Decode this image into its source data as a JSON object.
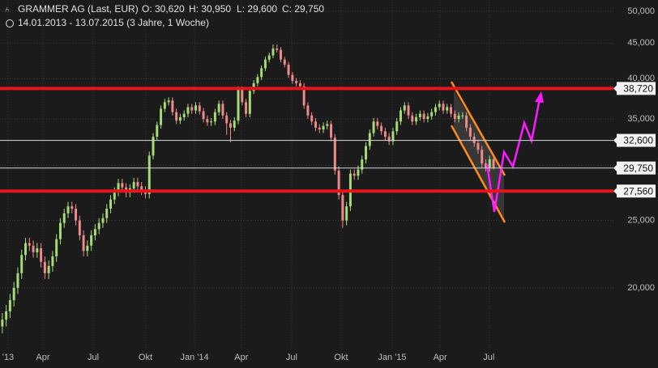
{
  "header": {
    "title": "GRAMMER AG (Last, EUR)",
    "open": "O: 30,620",
    "high": "H: 30,950",
    "low": "L: 29,600",
    "close": "C: 29,750",
    "range": "14.01.2013 - 13.07.2015 (3 Jahre, 1 Woche)"
  },
  "chart_data": {
    "type": "candlestick",
    "log_scale": true,
    "grid": true,
    "up_color": "#a6dc78",
    "down_color": "#ee8a8a",
    "xlim": [
      -0.6,
      158
    ],
    "ylim": [
      16.4,
      51.9
    ],
    "xticks": [
      {
        "value": 1.5,
        "label": "'13"
      },
      {
        "value": 10.5,
        "label": "Apr"
      },
      {
        "value": 23.5,
        "label": "Jul"
      },
      {
        "value": 37,
        "label": "Okt"
      },
      {
        "value": 49.7,
        "label": "Jan '14"
      },
      {
        "value": 61.8,
        "label": "Apr"
      },
      {
        "value": 74.8,
        "label": "Jul"
      },
      {
        "value": 87.6,
        "label": "Okt"
      },
      {
        "value": 100.8,
        "label": "Jan '15"
      },
      {
        "value": 113.2,
        "label": "Apr"
      },
      {
        "value": 125.8,
        "label": "Jul"
      }
    ],
    "yticks": [
      {
        "value": 20,
        "label": "20,000"
      },
      {
        "value": 25,
        "label": "25,000"
      },
      {
        "value": 30,
        "label": "30,000"
      },
      {
        "value": 35,
        "label": "35,000"
      },
      {
        "value": 40,
        "label": "40,000"
      },
      {
        "value": 45,
        "label": "45,000"
      },
      {
        "value": 50,
        "label": "50,000"
      }
    ],
    "levels": [
      {
        "value": 38.72,
        "label": "38,720",
        "color": "#e8141b",
        "width": 4
      },
      {
        "value": 32.6,
        "label": "32,600",
        "color": "#d8d8d8",
        "width": 1
      },
      {
        "value": 29.75,
        "label": "29,750",
        "color": "#d8d8d8",
        "width": 1
      },
      {
        "value": 27.56,
        "label": "27,560",
        "color": "#e8141b",
        "width": 4
      }
    ],
    "open": [
      17.6,
      18.0,
      18.5,
      19.2,
      20.0,
      21.0,
      22.3,
      23.2,
      23.0,
      22.5,
      22.8,
      21.8,
      21.0,
      21.5,
      22.2,
      23.5,
      24.8,
      25.6,
      26.2,
      26.0,
      25.0,
      23.8,
      22.6,
      23.0,
      23.8,
      24.3,
      24.8,
      25.2,
      26.0,
      26.8,
      27.5,
      28.3,
      27.9,
      27.4,
      27.8,
      28.4,
      28.0,
      27.6,
      27.3,
      31.0,
      33.0,
      34.3,
      36.2,
      37.0,
      37.2,
      35.8,
      34.8,
      35.2,
      35.6,
      36.4,
      36.0,
      36.6,
      35.9,
      35.0,
      34.6,
      34.7,
      35.8,
      36.8,
      35.4,
      34.5,
      34.0,
      34.8,
      38.6,
      37.0,
      35.6,
      38.4,
      39.4,
      40.2,
      41.4,
      42.6,
      43.2,
      44.2,
      44.0,
      42.6,
      41.9,
      40.5,
      39.7,
      39.4,
      39.0,
      36.6,
      35.4,
      34.7,
      34.0,
      33.8,
      34.2,
      34.4,
      32.9,
      29.5,
      27.2,
      25.0,
      26.2,
      29.2,
      29.0,
      29.6,
      30.6,
      32.0,
      33.4,
      34.7,
      34.2,
      33.6,
      33.0,
      32.5,
      33.6,
      34.7,
      36.0,
      36.6,
      35.4,
      34.7,
      35.2,
      35.6,
      35.0,
      35.3,
      35.8,
      36.4,
      36.8,
      36.0,
      36.4,
      35.6,
      35.0,
      35.4,
      35.4,
      34.0,
      33.0,
      32.3,
      31.6,
      30.2,
      29.8,
      30.62
    ],
    "high": [
      18.4,
      18.9,
      19.6,
      20.4,
      21.4,
      22.7,
      23.6,
      23.6,
      23.4,
      23.2,
      23.2,
      22.2,
      21.9,
      22.6,
      23.9,
      25.2,
      26.0,
      26.6,
      26.6,
      26.4,
      25.4,
      24.2,
      23.4,
      24.2,
      24.7,
      25.2,
      25.6,
      26.4,
      27.2,
      27.9,
      28.7,
      28.7,
      28.3,
      28.2,
      28.8,
      28.8,
      28.4,
      28.0,
      31.4,
      33.4,
      34.7,
      36.6,
      37.4,
      37.6,
      37.6,
      36.2,
      35.6,
      36.0,
      36.8,
      36.8,
      37.0,
      37.0,
      36.3,
      35.4,
      35.1,
      36.2,
      37.2,
      37.2,
      35.8,
      34.9,
      35.2,
      39.0,
      39.0,
      37.4,
      38.8,
      39.8,
      40.6,
      41.8,
      43.0,
      43.6,
      44.8,
      44.8,
      44.4,
      43.0,
      42.3,
      40.9,
      40.1,
      39.8,
      39.4,
      37.0,
      35.8,
      35.1,
      34.4,
      34.6,
      34.8,
      34.8,
      33.3,
      29.9,
      27.6,
      26.6,
      29.6,
      29.6,
      30.0,
      31.0,
      32.4,
      33.8,
      35.1,
      35.1,
      34.6,
      34.0,
      33.4,
      34.0,
      35.1,
      36.4,
      37.0,
      37.0,
      35.8,
      35.6,
      36.0,
      36.0,
      35.7,
      36.2,
      36.8,
      37.2,
      37.2,
      36.8,
      36.8,
      36.0,
      35.8,
      35.8,
      35.8,
      34.4,
      33.4,
      32.7,
      32.0,
      30.6,
      31.0,
      30.95
    ],
    "low": [
      17.2,
      17.6,
      18.1,
      18.8,
      19.6,
      20.6,
      21.9,
      22.6,
      22.1,
      22.1,
      21.4,
      20.6,
      20.6,
      21.1,
      21.8,
      23.1,
      24.4,
      25.2,
      25.6,
      24.6,
      23.4,
      22.2,
      22.2,
      22.6,
      23.4,
      23.9,
      24.4,
      24.8,
      25.6,
      26.4,
      27.1,
      27.5,
      27.0,
      27.0,
      27.4,
      27.6,
      27.2,
      26.9,
      26.9,
      30.6,
      32.6,
      33.9,
      35.8,
      36.6,
      35.4,
      34.4,
      34.4,
      34.8,
      35.2,
      35.6,
      35.6,
      35.5,
      34.6,
      34.2,
      34.2,
      34.3,
      35.4,
      35.0,
      33.2,
      32.4,
      33.6,
      34.4,
      36.6,
      35.2,
      35.2,
      38.0,
      39.0,
      39.8,
      41.0,
      42.2,
      42.8,
      43.6,
      42.2,
      41.5,
      40.1,
      39.3,
      39.0,
      38.6,
      36.2,
      35.0,
      34.3,
      33.6,
      33.4,
      33.4,
      33.8,
      32.5,
      29.1,
      26.8,
      24.4,
      24.6,
      25.8,
      28.6,
      28.6,
      29.2,
      30.2,
      31.6,
      33.0,
      33.8,
      33.2,
      32.6,
      32.1,
      32.1,
      33.2,
      34.3,
      35.6,
      35.0,
      34.3,
      34.3,
      34.8,
      34.6,
      34.6,
      34.9,
      35.4,
      36.0,
      35.6,
      35.6,
      35.2,
      34.6,
      34.6,
      35.0,
      33.6,
      32.6,
      31.9,
      31.2,
      29.8,
      29.4,
      29.4,
      29.6
    ],
    "close": [
      18.0,
      18.5,
      19.2,
      20.0,
      21.0,
      22.3,
      23.2,
      23.0,
      22.5,
      22.8,
      21.8,
      21.0,
      21.5,
      22.2,
      23.5,
      24.8,
      25.6,
      26.2,
      26.0,
      25.0,
      23.8,
      22.6,
      23.0,
      23.8,
      24.3,
      24.8,
      25.2,
      26.0,
      26.8,
      27.5,
      28.3,
      27.9,
      27.4,
      27.8,
      28.4,
      28.0,
      27.6,
      27.3,
      31.0,
      33.0,
      34.3,
      36.2,
      37.0,
      37.2,
      35.8,
      34.8,
      35.2,
      35.6,
      36.4,
      36.0,
      36.6,
      35.9,
      35.0,
      34.6,
      34.7,
      35.8,
      36.8,
      35.4,
      34.5,
      34.0,
      34.8,
      38.6,
      37.0,
      35.6,
      38.4,
      39.4,
      40.2,
      41.4,
      42.6,
      43.2,
      44.2,
      44.0,
      42.6,
      41.9,
      40.5,
      39.7,
      39.4,
      39.0,
      36.6,
      35.4,
      34.7,
      34.0,
      33.8,
      34.2,
      34.4,
      32.9,
      29.5,
      27.2,
      25.0,
      26.2,
      29.2,
      29.0,
      29.6,
      30.6,
      32.0,
      33.4,
      34.7,
      34.2,
      33.6,
      33.0,
      32.5,
      33.6,
      34.7,
      36.0,
      36.6,
      35.4,
      34.7,
      35.2,
      35.6,
      35.0,
      35.3,
      35.8,
      36.4,
      36.8,
      36.0,
      36.4,
      35.6,
      35.0,
      35.4,
      35.4,
      34.0,
      33.0,
      32.3,
      31.6,
      30.2,
      29.8,
      30.62,
      29.75
    ]
  }
}
